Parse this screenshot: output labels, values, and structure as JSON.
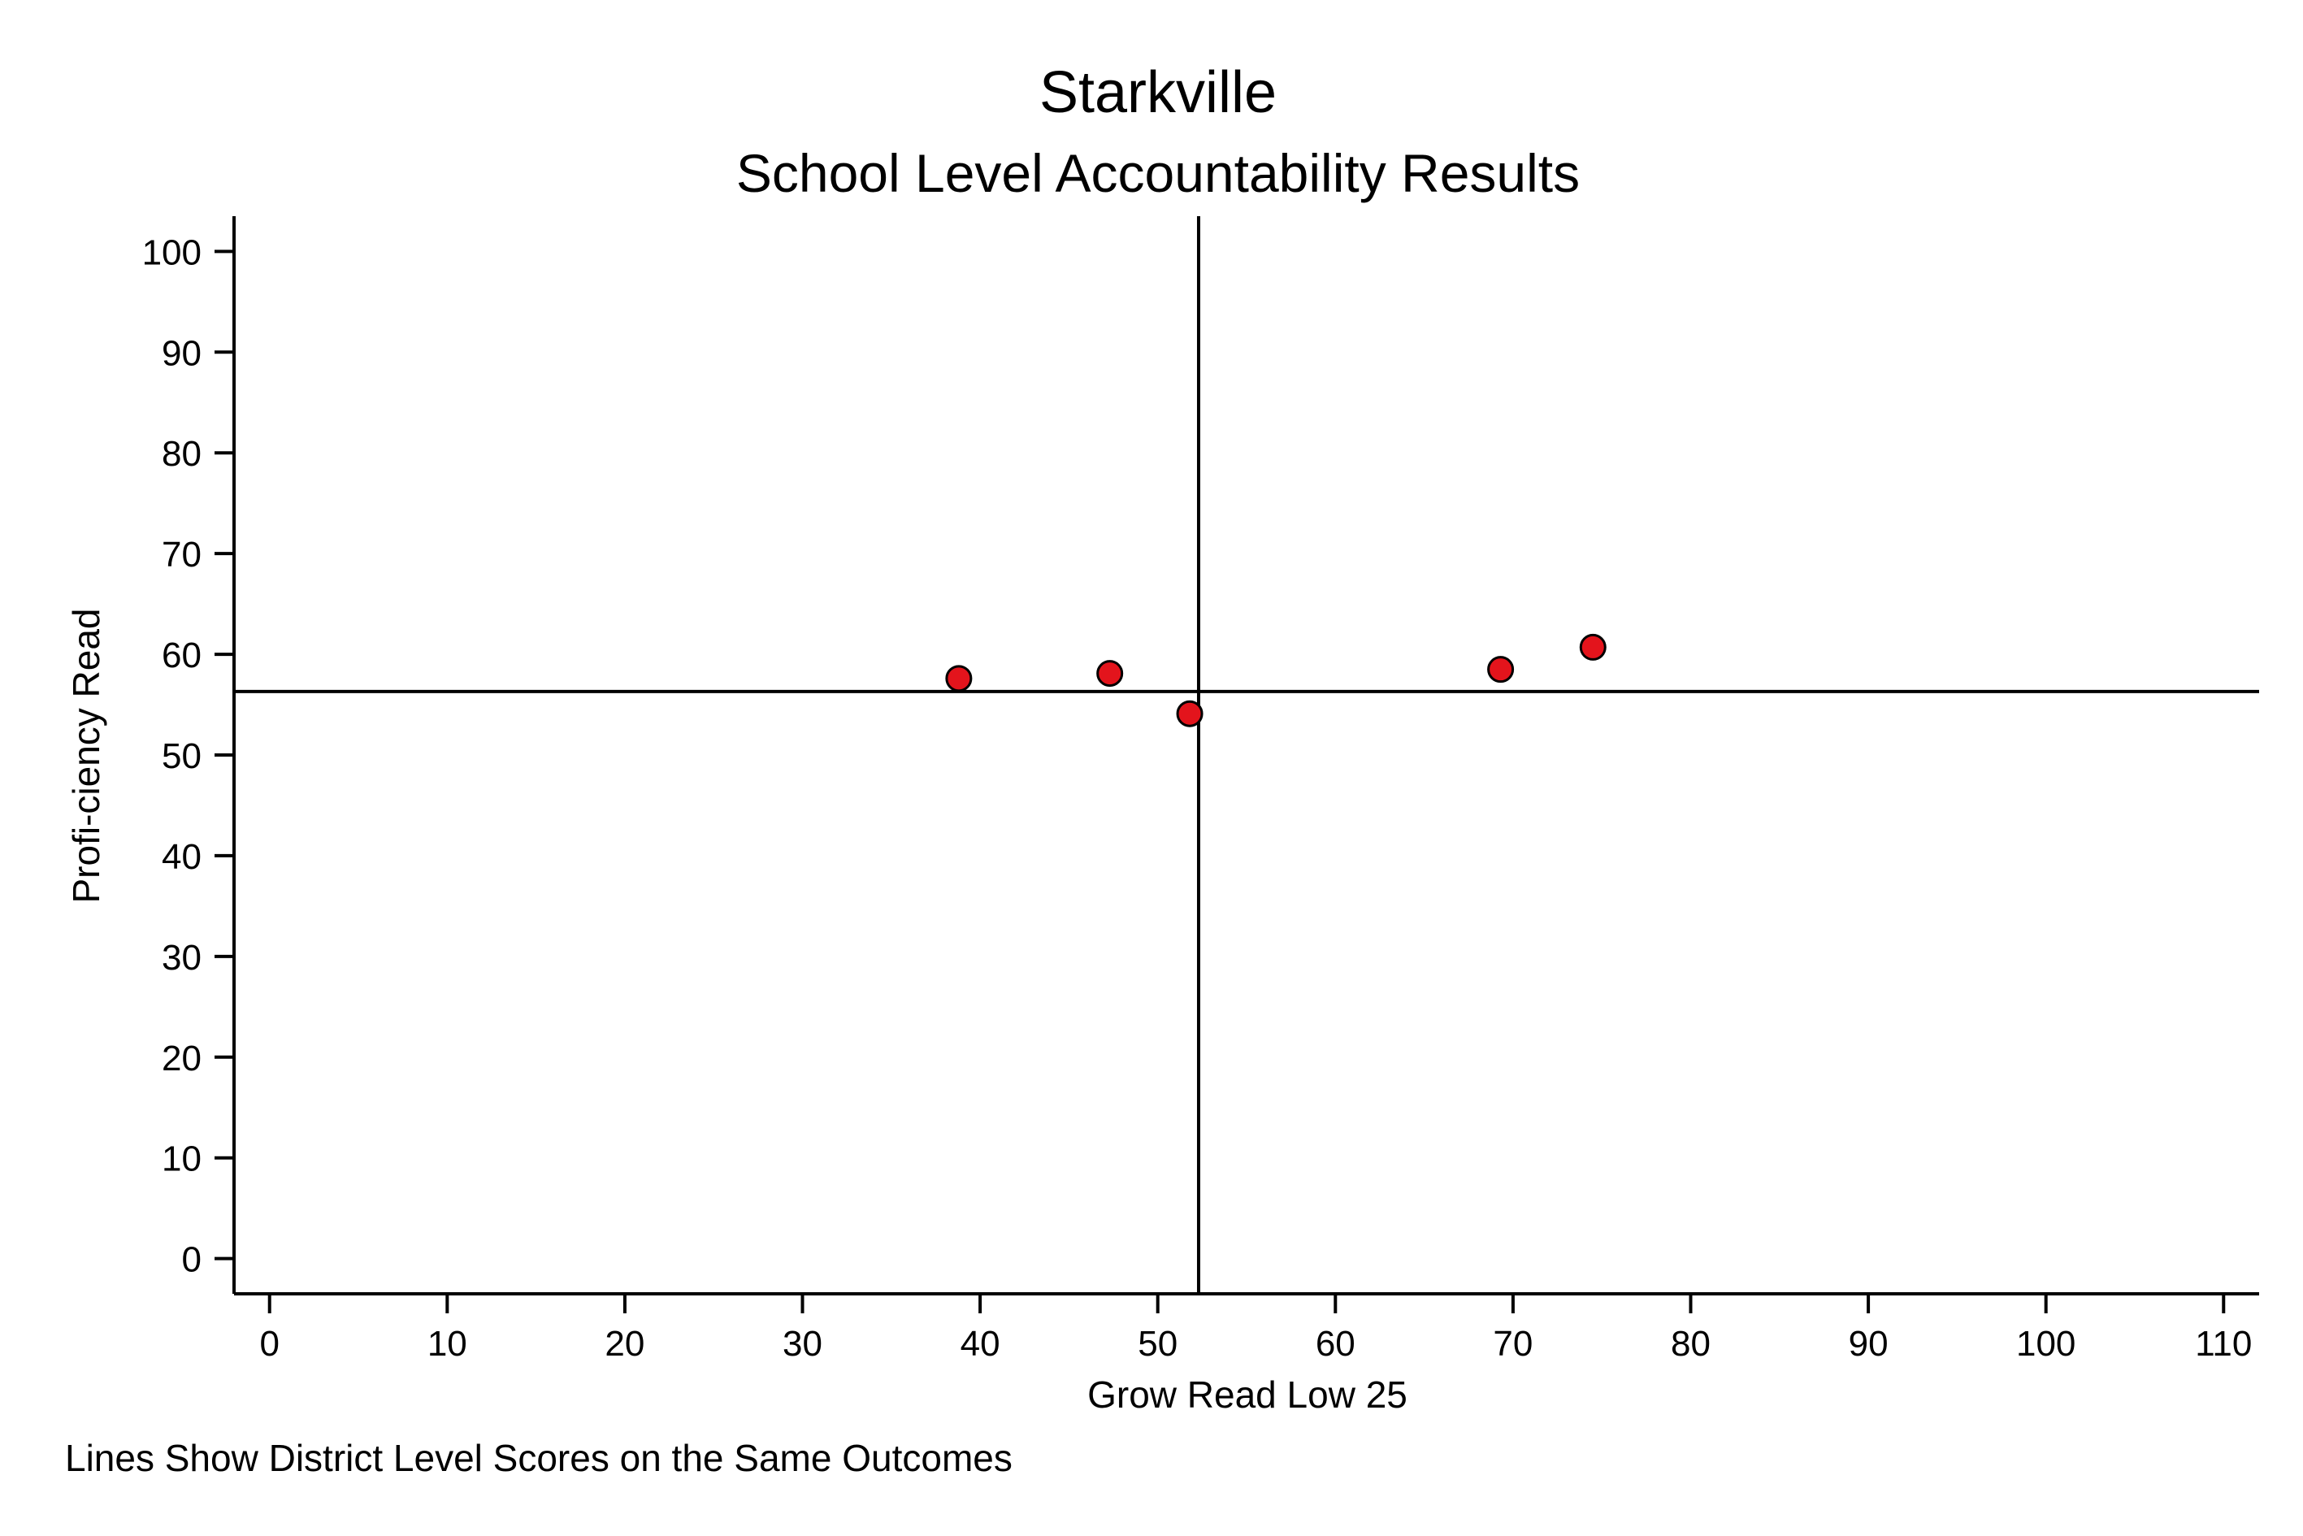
{
  "chart_data": {
    "type": "scatter",
    "title": "Starkville",
    "subtitle": "School Level Accountability Results",
    "xlabel": "Grow Read Low 25",
    "ylabel": "Profi-ciency Read",
    "note": "Lines Show District Level Scores on the Same Outcomes",
    "xlim": [
      -2,
      112
    ],
    "ylim": [
      -3.5,
      103.5
    ],
    "xticks": [
      0,
      10,
      20,
      30,
      40,
      50,
      60,
      70,
      80,
      90,
      100,
      110
    ],
    "yticks": [
      0,
      10,
      20,
      30,
      40,
      50,
      60,
      70,
      80,
      90,
      100
    ],
    "grid": false,
    "reference_lines": {
      "vertical_x": 52.3,
      "horizontal_y": 56.3
    },
    "series": [
      {
        "marker_color": "#e3141c",
        "points": [
          {
            "x": 38.8,
            "y": 57.6
          },
          {
            "x": 47.3,
            "y": 58.1
          },
          {
            "x": 51.8,
            "y": 54.1
          },
          {
            "x": 69.3,
            "y": 58.5
          },
          {
            "x": 74.5,
            "y": 60.7
          }
        ]
      }
    ]
  }
}
